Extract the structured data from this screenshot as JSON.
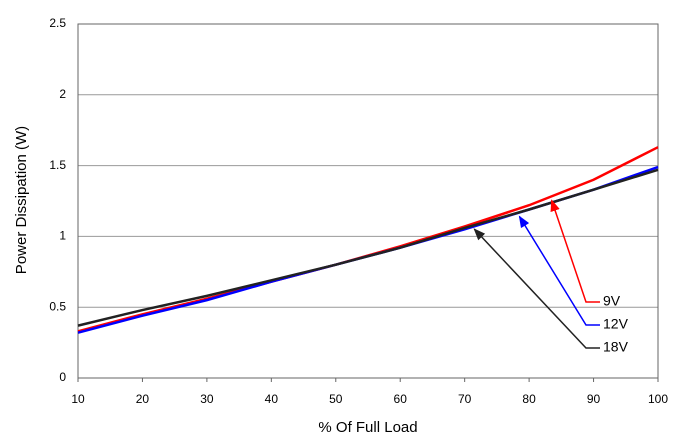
{
  "chart_data": {
    "type": "line",
    "x_label": "% Of Full Load",
    "y_label": "Power Dissipation (W)",
    "x": [
      10,
      20,
      30,
      40,
      50,
      60,
      70,
      80,
      90,
      100
    ],
    "series": [
      {
        "name": "9V",
        "color": "#ff0000",
        "values": [
          0.33,
          0.45,
          0.56,
          0.68,
          0.8,
          0.93,
          1.07,
          1.22,
          1.4,
          1.63
        ]
      },
      {
        "name": "12V",
        "color": "#0000ff",
        "values": [
          0.32,
          0.44,
          0.55,
          0.68,
          0.8,
          0.92,
          1.05,
          1.19,
          1.33,
          1.49
        ]
      },
      {
        "name": "18V",
        "color": "#222222",
        "values": [
          0.37,
          0.48,
          0.58,
          0.69,
          0.8,
          0.92,
          1.06,
          1.19,
          1.33,
          1.47
        ]
      }
    ],
    "xlim": [
      10,
      100
    ],
    "xticks": [
      10,
      20,
      30,
      40,
      50,
      60,
      70,
      80,
      90,
      100
    ],
    "ylim": [
      0,
      2.5
    ],
    "yticks": [
      0,
      0.5,
      1,
      1.5,
      2,
      2.5
    ],
    "grid": true
  }
}
